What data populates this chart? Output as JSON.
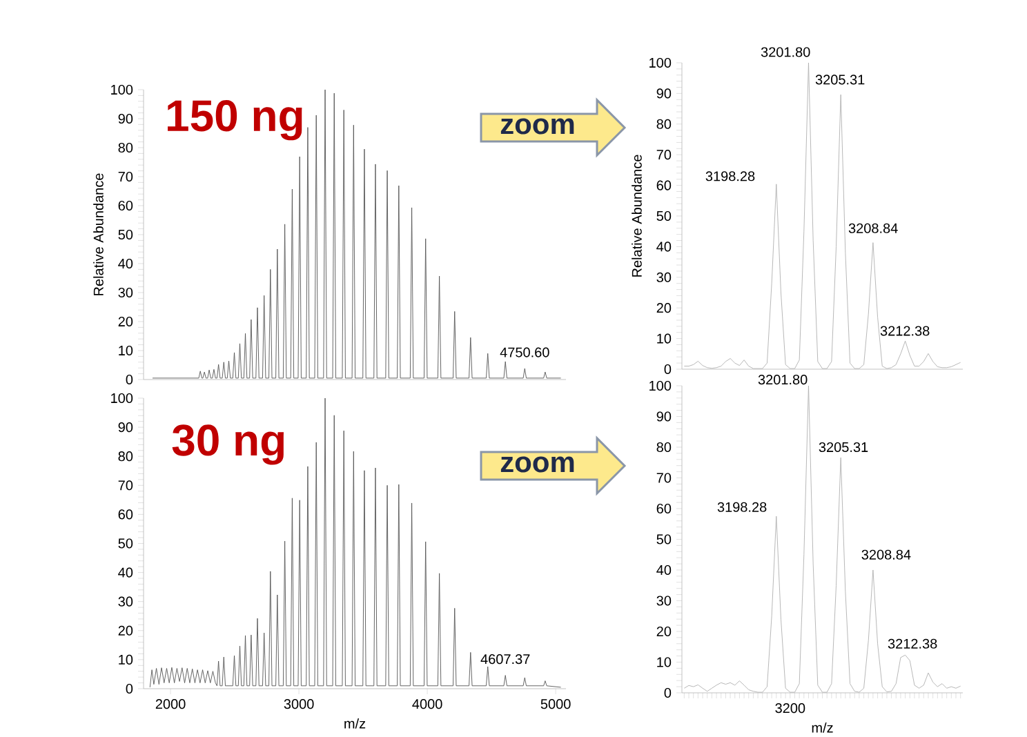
{
  "chart_data": [
    {
      "type": "line",
      "title": "150 ng",
      "ylabel": "Relative Abundance",
      "xlim": [
        1790,
        5080
      ],
      "ylim": [
        0,
        100
      ],
      "xticks": [
        2000,
        3000,
        4000,
        5000
      ],
      "yticks": [
        0,
        10,
        20,
        30,
        40,
        50,
        60,
        70,
        80,
        90,
        100
      ],
      "tick_labels": "y",
      "annotations": [
        {
          "text": "4750.60",
          "x": 4759,
          "y": 3.8
        },
        "zoom"
      ],
      "series": [
        {
          "color": "#555555",
          "x": [
            1860,
            2220,
            2232,
            2244,
            2252,
            2264,
            2276,
            2289,
            2301,
            2313,
            2326,
            2338,
            2350,
            2362,
            2374,
            2386,
            2403,
            2415,
            2427,
            2442,
            2454,
            2466,
            2485,
            2497,
            2509,
            2528,
            2540,
            2552,
            2571,
            2583,
            2595,
            2616,
            2628,
            2640,
            2665,
            2677,
            2689,
            2717,
            2729,
            2741,
            2766,
            2778,
            2790,
            2820,
            2832,
            2844,
            2878,
            2890,
            2902,
            2936,
            2948,
            2960,
            2994,
            3006,
            3018,
            3057,
            3069,
            3081,
            3123,
            3135,
            3147,
            3192,
            3204,
            3216,
            3263,
            3275,
            3287,
            3338,
            3350,
            3362,
            3414,
            3426,
            3438,
            3498,
            3510,
            3522,
            3584,
            3596,
            3608,
            3676,
            3688,
            3700,
            3766,
            3778,
            3790,
            3867,
            3879,
            3891,
            3975,
            3987,
            3999,
            4082,
            4094,
            4106,
            4201,
            4213,
            4225,
            4325,
            4337,
            4349,
            4459,
            4471,
            4483,
            4596,
            4608,
            4620,
            4747,
            4759,
            4771,
            4906,
            4918,
            4930,
            5040
          ],
          "values": [
            0.5,
            0.5,
            2.9,
            0.5,
            0.5,
            2.6,
            0.5,
            0.5,
            3.3,
            0.5,
            0.5,
            3.5,
            0.5,
            0.5,
            5.2,
            0.5,
            0.5,
            6.0,
            0.5,
            0.5,
            6.4,
            0.5,
            0.5,
            9.3,
            0.5,
            0.5,
            12.4,
            0.5,
            0.5,
            15.9,
            0.5,
            0.5,
            20.7,
            0.5,
            0.5,
            24.8,
            0.5,
            0.5,
            29.0,
            0.5,
            0.5,
            38.0,
            0.5,
            0.5,
            45.0,
            0.5,
            0.5,
            53.6,
            0.5,
            0.5,
            65.7,
            0.5,
            0.5,
            76.9,
            0.5,
            0.5,
            87.0,
            0.5,
            0.5,
            91.2,
            0.5,
            0.5,
            100,
            0.5,
            0.5,
            98.8,
            0.5,
            0.5,
            93.0,
            0.5,
            0.5,
            87.8,
            0.5,
            0.5,
            79.5,
            0.5,
            0.5,
            74.3,
            0.5,
            0.5,
            72.1,
            0.5,
            0.5,
            66.9,
            0.5,
            0.5,
            59.3,
            0.5,
            0.5,
            48.6,
            0.5,
            0.5,
            35.7,
            0.5,
            0.5,
            23.5,
            0.5,
            0.5,
            14.5,
            0.5,
            0.5,
            9.0,
            0.5,
            0.5,
            6.2,
            0.5,
            0.5,
            3.8,
            0.5,
            0.5,
            2.6,
            0.5,
            0.5
          ]
        }
      ]
    },
    {
      "type": "line",
      "ylabel": "Relative Abundance",
      "ylim": [
        0,
        100
      ],
      "yticks": [
        0,
        10,
        20,
        30,
        40,
        50,
        60,
        70,
        80,
        90,
        100
      ],
      "tick_labels": "y",
      "categories": [
        null,
        null,
        null,
        null,
        null,
        null,
        null,
        null,
        null,
        null,
        null,
        null,
        null,
        null,
        null,
        null,
        null,
        null,
        null,
        null,
        null,
        null,
        null,
        null,
        null,
        null,
        null,
        null,
        null,
        null,
        null,
        null,
        null,
        null,
        null,
        null,
        null,
        null,
        null,
        null,
        null,
        null,
        null,
        null,
        null,
        null,
        null,
        null,
        null,
        null,
        null,
        null,
        null,
        null,
        null,
        null,
        null,
        null,
        null,
        null,
        null
      ],
      "annotations": [
        "3198.28",
        "3201.80",
        "3205.31",
        "3208.84",
        "3212.38"
      ],
      "series": [
        {
          "color": "#b0b0b0",
          "values": [
            1.0,
            1.0,
            1.5,
            2.6,
            1.2,
            0.5,
            0.3,
            0.5,
            1.0,
            2.5,
            3.5,
            2.0,
            1.2,
            3.0,
            1.0,
            0.2,
            0.2,
            0.2,
            2.0,
            28,
            60.4,
            25,
            1.5,
            0.2,
            0.2,
            3.0,
            45,
            100,
            42,
            2.5,
            0.2,
            0.2,
            2.5,
            40,
            89.6,
            38,
            2.0,
            0.2,
            0.2,
            1.5,
            18,
            41.3,
            17,
            1.0,
            0.2,
            0.5,
            1.5,
            5.0,
            9.2,
            4.5,
            1.0,
            1.0,
            2.5,
            5.1,
            2.5,
            0.8,
            0.5,
            0.5,
            0.8,
            1.5,
            2.2
          ]
        }
      ]
    },
    {
      "type": "line",
      "title": "30 ng",
      "xlabel": "m/z",
      "xlim": [
        1790,
        5080
      ],
      "ylim": [
        0,
        100
      ],
      "xticks": [
        2000,
        3000,
        4000,
        5000
      ],
      "yticks": [
        0,
        10,
        20,
        30,
        40,
        50,
        60,
        70,
        80,
        90,
        100
      ],
      "annotations": [
        {
          "text": "4607.37",
          "x": 4608,
          "y": 4.6
        },
        "zoom"
      ],
      "series": [
        {
          "color": "#555555",
          "x": [
            1840,
            1855,
            1870,
            1890,
            1910,
            1930,
            1950,
            1970,
            1990,
            2010,
            2030,
            2050,
            2070,
            2090,
            2110,
            2130,
            2150,
            2170,
            2190,
            2210,
            2230,
            2250,
            2270,
            2290,
            2310,
            2330,
            2350,
            2362,
            2374,
            2386,
            2403,
            2415,
            2427,
            2485,
            2497,
            2509,
            2528,
            2540,
            2552,
            2571,
            2583,
            2595,
            2616,
            2628,
            2640,
            2665,
            2677,
            2689,
            2717,
            2729,
            2741,
            2766,
            2778,
            2790,
            2820,
            2832,
            2844,
            2878,
            2890,
            2902,
            2936,
            2948,
            2960,
            2994,
            3006,
            3018,
            3057,
            3069,
            3081,
            3123,
            3135,
            3147,
            3192,
            3204,
            3216,
            3263,
            3275,
            3287,
            3338,
            3350,
            3362,
            3414,
            3426,
            3438,
            3498,
            3510,
            3522,
            3584,
            3596,
            3608,
            3676,
            3688,
            3700,
            3766,
            3778,
            3790,
            3867,
            3879,
            3891,
            3975,
            3987,
            3999,
            4082,
            4094,
            4106,
            4201,
            4213,
            4225,
            4325,
            4337,
            4349,
            4459,
            4471,
            4483,
            4596,
            4608,
            4620,
            4747,
            4759,
            4771,
            4906,
            4918,
            4930,
            5040
          ],
          "values": [
            0.5,
            6.5,
            1.5,
            7.0,
            1.5,
            7.2,
            2.0,
            7.0,
            2.0,
            7.3,
            2.0,
            7.0,
            2.5,
            7.2,
            2.0,
            7.0,
            2.0,
            6.8,
            2.0,
            6.5,
            2.0,
            6.5,
            2.0,
            6.2,
            2.0,
            6.0,
            2.0,
            1.0,
            9.5,
            1.0,
            1.0,
            10.9,
            1.0,
            1.0,
            11.4,
            1.0,
            1.0,
            14.7,
            1.0,
            1.0,
            18.3,
            1.0,
            1.0,
            18.5,
            1.0,
            1.0,
            24.2,
            1.0,
            1.0,
            19.2,
            1.0,
            1.0,
            40.4,
            1.0,
            1.0,
            32.3,
            1.0,
            1.0,
            50.8,
            1.0,
            1.0,
            65.6,
            1.0,
            1.0,
            64.9,
            1.0,
            1.0,
            76.5,
            1.0,
            1.0,
            84.8,
            1.0,
            1.0,
            100,
            1.0,
            1.0,
            94.1,
            1.0,
            1.0,
            88.8,
            1.0,
            1.0,
            81.7,
            1.0,
            1.0,
            75.1,
            1.0,
            1.0,
            76.0,
            1.0,
            1.0,
            70.0,
            1.0,
            1.0,
            70.3,
            1.0,
            1.0,
            63.9,
            1.0,
            1.0,
            50.6,
            1.0,
            1.0,
            39.7,
            1.0,
            1.0,
            27.7,
            1.0,
            1.0,
            12.5,
            1.0,
            1.0,
            7.6,
            1.0,
            1.0,
            4.6,
            1.0,
            1.0,
            3.8,
            1.0,
            1.0,
            2.7,
            1.0,
            0.5
          ]
        }
      ]
    },
    {
      "type": "line",
      "xlabel": "m/z",
      "ylim": [
        0,
        100
      ],
      "yticks": [
        0,
        10,
        20,
        30,
        40,
        50,
        60,
        70,
        80,
        90,
        100
      ],
      "categories": [
        null,
        null,
        null,
        null,
        null,
        null,
        null,
        null,
        null,
        null,
        null,
        null,
        null,
        null,
        null,
        null,
        null,
        null,
        null,
        null,
        null,
        null,
        null,
        "3200",
        null,
        null,
        null,
        null,
        null,
        null,
        null,
        null,
        null,
        null,
        null,
        null,
        null,
        null,
        null,
        null,
        null,
        null,
        null,
        null,
        null,
        null,
        null,
        null,
        null,
        null,
        null,
        null,
        null,
        null,
        null,
        null,
        null,
        null,
        null,
        null,
        null
      ],
      "annotations": [
        "3198.28",
        "3201.80",
        "3205.31",
        "3208.84",
        "3212.38"
      ],
      "series": [
        {
          "color": "#b0b0b0",
          "values": [
            1.5,
            2.4,
            2.0,
            2.6,
            1.5,
            0.5,
            1.5,
            2.5,
            3.3,
            2.8,
            3.3,
            2.5,
            3.9,
            2.5,
            1.0,
            0.5,
            0.2,
            0.2,
            2.0,
            25,
            57.5,
            24,
            1.5,
            0.2,
            0.2,
            3.0,
            45,
            100,
            42,
            2.5,
            0.2,
            0.2,
            3.0,
            35,
            76.6,
            33,
            3.0,
            0.5,
            0.2,
            1.5,
            17,
            40.0,
            16,
            2.0,
            0.3,
            0.5,
            3.0,
            11.5,
            12.3,
            10.5,
            2.5,
            1.5,
            2.5,
            6.5,
            3.5,
            2.0,
            3.0,
            1.5,
            2.0,
            1.5,
            2.2
          ]
        }
      ]
    }
  ]
}
